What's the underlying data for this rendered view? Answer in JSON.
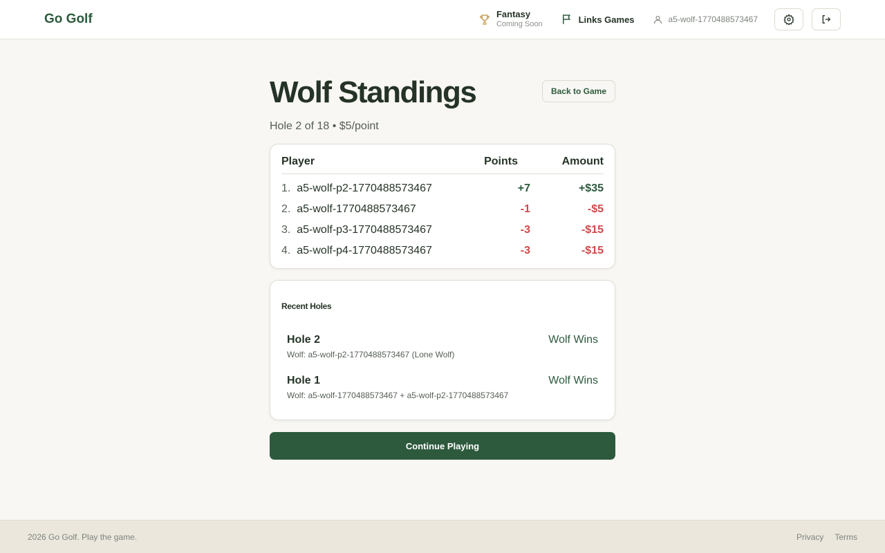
{
  "header": {
    "logo": "Go Golf",
    "fantasy": {
      "title": "Fantasy",
      "subtitle": "Coming Soon"
    },
    "links_games": "Links Games",
    "username": "a5-wolf-1770488573467"
  },
  "page": {
    "title": "Wolf Standings",
    "back_label": "Back to Game",
    "subtitle": "Hole 2 of 18 • $5/point"
  },
  "standings": {
    "columns": [
      "Player",
      "Points",
      "Amount"
    ],
    "rows": [
      {
        "rank": "1.",
        "player": "a5-wolf-p2-1770488573467",
        "points": "+7",
        "amount": "+$35"
      },
      {
        "rank": "2.",
        "player": "a5-wolf-1770488573467",
        "points": "-1",
        "amount": "-$5"
      },
      {
        "rank": "3.",
        "player": "a5-wolf-p3-1770488573467",
        "points": "-3",
        "amount": "-$15"
      },
      {
        "rank": "4.",
        "player": "a5-wolf-p4-1770488573467",
        "points": "-3",
        "amount": "-$15"
      }
    ]
  },
  "recent": {
    "title": "Recent Holes",
    "holes": [
      {
        "name": "Hole 2",
        "detail": "Wolf: a5-wolf-p2-1770488573467 (Lone Wolf)",
        "result": "Wolf Wins"
      },
      {
        "name": "Hole 1",
        "detail": "Wolf: a5-wolf-1770488573467 + a5-wolf-p2-1770488573467",
        "result": "Wolf Wins"
      }
    ]
  },
  "continue_label": "Continue Playing",
  "footer": {
    "copyright": "2026 Go Golf. Play the game.",
    "privacy": "Privacy",
    "terms": "Terms"
  },
  "colors": {
    "accent": "#2d5a3d",
    "negative": "#d04a4a",
    "trophy": "#c9a15a"
  }
}
